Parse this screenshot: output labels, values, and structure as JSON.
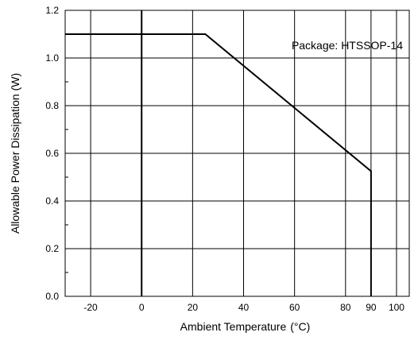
{
  "chart_data": {
    "type": "line",
    "title": "",
    "xlabel": "Ambient Temperature",
    "xlabel_unit": "(°C)",
    "ylabel": "Allowable Power Dissipation (W)",
    "xlim": [
      -30,
      105
    ],
    "ylim": [
      0,
      1.2
    ],
    "x_tick_values": [
      -20,
      0,
      20,
      40,
      60,
      80,
      90,
      100
    ],
    "x_tick_labels": [
      "-20",
      "0",
      "20",
      "40",
      "60",
      "80",
      "90",
      "100"
    ],
    "y_tick_values": [
      0,
      0.2,
      0.4,
      0.6,
      0.8,
      1.0,
      1.2
    ],
    "y_tick_labels": [
      "0.0",
      "0.2",
      "0.4",
      "0.6",
      "0.8",
      "1.0",
      "1.2"
    ],
    "grid": true,
    "annotation": "Package: HTSSOP-14",
    "annotation_position": "top-right",
    "series": [
      {
        "x": [
          -30,
          25,
          90,
          90
        ],
        "y": [
          1.1,
          1.1,
          0.525,
          0
        ],
        "color": "#000000"
      }
    ]
  }
}
